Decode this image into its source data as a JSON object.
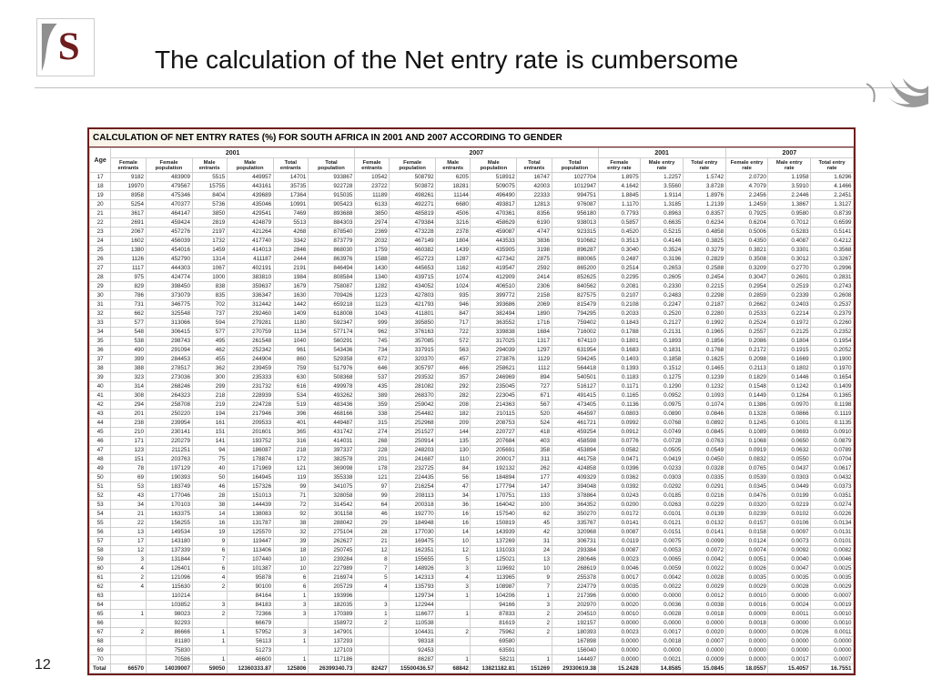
{
  "title": "The calculation of the Net entry rate is cumbersome",
  "page": "12",
  "table": {
    "caption": "CALCULATION OF NET ENTRY RATES (%) FOR SOUTH AFRICA IN 2001 AND 2007 ACCORDING TO GENDER",
    "head": {
      "age": "Age",
      "g1": "2001",
      "g2": "2007",
      "sub": [
        "Female<br>entrants",
        "Female<br>population",
        "Male<br>entrants",
        "Male<br>population",
        "Total<br>entrants",
        "Total<br>population",
        "Female<br>entrants",
        "Female<br>population",
        "Male<br>entrants",
        "Male<br>population",
        "Total<br>entrants",
        "Total<br>population",
        "Female<br>entry rate",
        "Male entry<br>rate",
        "Total entry<br>rate",
        "Female entry<br>rate",
        "Male entry<br>rate",
        "Total entry<br>rate"
      ]
    },
    "colors": {
      "frame_border": "#6e1e1e",
      "grid": "#cfcfcf",
      "header_rule": "#bfbfbf",
      "title_band": "#f7f3e8"
    },
    "font": {
      "family": "Arial",
      "body_pt": 6,
      "head_pt": 6,
      "caption_pt": 10
    },
    "rows": [
      [
        "17",
        9182,
        483909,
        5515,
        449957,
        14701,
        933867,
        10542,
        508792,
        6205,
        518912,
        16747,
        1027704,
        "1.8975",
        "1.2257",
        "1.5742",
        "2.0720",
        "1.1958",
        "1.6296"
      ],
      [
        "18",
        19970,
        479567,
        15755,
        443161,
        35735,
        922728,
        23722,
        503872,
        18281,
        509075,
        42003,
        1012947,
        "4.1642",
        "3.5560",
        "3.8728",
        "4.7079",
        "3.5910",
        "4.1466"
      ],
      [
        "19",
        8958,
        475346,
        8404,
        439689,
        17364,
        915035,
        11189,
        498261,
        11144,
        496490,
        22333,
        994751,
        "1.8845",
        "1.9114",
        "1.8976",
        "2.2456",
        "2.2446",
        "2.2451"
      ],
      [
        "20",
        5254,
        470377,
        5736,
        435046,
        10991,
        905423,
        6133,
        492271,
        6680,
        493817,
        12813,
        976087,
        "1.1170",
        "1.3185",
        "1.2139",
        "1.2459",
        "1.3867",
        "1.3127"
      ],
      [
        "21",
        3617,
        464147,
        3850,
        429541,
        7469,
        893688,
        3850,
        485819,
        4506,
        470361,
        8356,
        956180,
        "0.7793",
        "0.8963",
        "0.8357",
        "0.7925",
        "0.9580",
        "0.8739"
      ],
      [
        "22",
        2691,
        459424,
        2819,
        424879,
        5513,
        884303,
        2974,
        479384,
        3216,
        458629,
        6190,
        938013,
        "0.5857",
        "0.6635",
        "0.6234",
        "0.6204",
        "0.7012",
        "0.6599"
      ],
      [
        "23",
        2067,
        457276,
        2197,
        421264,
        4268,
        878540,
        2369,
        473228,
        2378,
        459087,
        4747,
        923315,
        "0.4520",
        "0.5215",
        "0.4858",
        "0.5006",
        "0.5283",
        "0.5141"
      ],
      [
        "24",
        1602,
        456039,
        1732,
        417740,
        3342,
        873779,
        2032,
        467149,
        1804,
        443533,
        3836,
        910682,
        "0.3513",
        "0.4146",
        "0.3825",
        "0.4350",
        "0.4087",
        "0.4212"
      ],
      [
        "25",
        1380,
        454016,
        1459,
        414013,
        2846,
        868030,
        1759,
        460382,
        1439,
        435905,
        3198,
        896287,
        "0.3040",
        "0.3524",
        "0.3279",
        "0.3821",
        "0.3301",
        "0.3568"
      ],
      [
        "26",
        1126,
        452790,
        1314,
        411187,
        2444,
        863976,
        1588,
        452723,
        1287,
        427342,
        2875,
        880065,
        "0.2487",
        "0.3196",
        "0.2829",
        "0.3508",
        "0.3012",
        "0.3267"
      ],
      [
        "27",
        1117,
        444303,
        1067,
        402191,
        2191,
        846494,
        1430,
        445653,
        1162,
        419547,
        2592,
        865200,
        "0.2514",
        "0.2653",
        "0.2588",
        "0.3209",
        "0.2770",
        "0.2996"
      ],
      [
        "28",
        975,
        424774,
        1000,
        383810,
        1984,
        808584,
        1340,
        439715,
        1074,
        412909,
        2414,
        852625,
        "0.2295",
        "0.2605",
        "0.2454",
        "0.3047",
        "0.2601",
        "0.2831"
      ],
      [
        "29",
        829,
        398450,
        838,
        359637,
        1679,
        758087,
        1282,
        434052,
        1024,
        406510,
        2306,
        840562,
        "0.2081",
        "0.2330",
        "0.2215",
        "0.2954",
        "0.2519",
        "0.2743"
      ],
      [
        "30",
        786,
        373079,
        835,
        336347,
        1630,
        709426,
        1223,
        427803,
        935,
        399772,
        2158,
        827575,
        "0.2107",
        "0.2483",
        "0.2298",
        "0.2859",
        "0.2339",
        "0.2608"
      ],
      [
        "31",
        731,
        346775,
        702,
        312442,
        1442,
        659218,
        1123,
        421793,
        946,
        393686,
        2069,
        815479,
        "0.2108",
        "0.2247",
        "0.2187",
        "0.2662",
        "0.2403",
        "0.2537"
      ],
      [
        "32",
        662,
        325548,
        737,
        292460,
        1409,
        618008,
        1043,
        411801,
        847,
        382494,
        1890,
        794295,
        "0.2033",
        "0.2520",
        "0.2280",
        "0.2533",
        "0.2214",
        "0.2379"
      ],
      [
        "33",
        577,
        313066,
        594,
        279281,
        1180,
        592347,
        999,
        395850,
        717,
        363552,
        1716,
        759402,
        "0.1843",
        "0.2127",
        "0.1992",
        "0.2524",
        "0.1972",
        "0.2260"
      ],
      [
        "34",
        548,
        306415,
        577,
        270759,
        1134,
        577174,
        962,
        376163,
        722,
        339838,
        1684,
        716002,
        "0.1788",
        "0.2131",
        "0.1965",
        "0.2557",
        "0.2125",
        "0.2352"
      ],
      [
        "35",
        538,
        298743,
        495,
        261548,
        1040,
        560291,
        745,
        357085,
        572,
        317025,
        1317,
        674110,
        "0.1801",
        "0.1893",
        "0.1856",
        "0.2086",
        "0.1804",
        "0.1954"
      ],
      [
        "36",
        490,
        291094,
        462,
        252342,
        961,
        543436,
        734,
        337915,
        563,
        294039,
        1297,
        631954,
        "0.1683",
        "0.1831",
        "0.1768",
        "0.2172",
        "0.1915",
        "0.2052"
      ],
      [
        "37",
        399,
        284453,
        455,
        244904,
        860,
        529358,
        672,
        320370,
        457,
        273876,
        1129,
        594245,
        "0.1403",
        "0.1858",
        "0.1625",
        "0.2098",
        "0.1669",
        "0.1900"
      ],
      [
        "38",
        388,
        278517,
        362,
        239459,
        759,
        517976,
        646,
        305797,
        466,
        258621,
        1112,
        564418,
        "0.1393",
        "0.1512",
        "0.1465",
        "0.2113",
        "0.1802",
        "0.1970"
      ],
      [
        "39",
        323,
        273036,
        300,
        235333,
        630,
        508368,
        537,
        293532,
        357,
        246969,
        894,
        540501,
        "0.1183",
        "0.1275",
        "0.1239",
        "0.1829",
        "0.1446",
        "0.1654"
      ],
      [
        "40",
        314,
        268246,
        299,
        231732,
        616,
        499978,
        435,
        281082,
        292,
        235045,
        727,
        516127,
        "0.1171",
        "0.1290",
        "0.1232",
        "0.1548",
        "0.1242",
        "0.1409"
      ],
      [
        "41",
        308,
        264323,
        218,
        228939,
        534,
        493262,
        389,
        268370,
        282,
        223045,
        671,
        491415,
        "0.1165",
        "0.0952",
        "0.1093",
        "0.1449",
        "0.1264",
        "0.1365"
      ],
      [
        "42",
        294,
        258708,
        219,
        224728,
        519,
        483436,
        359,
        259042,
        208,
        214363,
        567,
        473405,
        "0.1136",
        "0.0975",
        "0.1074",
        "0.1386",
        "0.0970",
        "0.1198"
      ],
      [
        "43",
        201,
        250220,
        194,
        217946,
        396,
        468166,
        338,
        254482,
        182,
        210115,
        520,
        464597,
        "0.0803",
        "0.0890",
        "0.0846",
        "0.1328",
        "0.0866",
        "0.1119"
      ],
      [
        "44",
        238,
        239954,
        161,
        209533,
        401,
        449487,
        315,
        252968,
        209,
        208753,
        524,
        461721,
        "0.0992",
        "0.0768",
        "0.0892",
        "0.1245",
        "0.1001",
        "0.1135"
      ],
      [
        "45",
        210,
        230141,
        151,
        201601,
        365,
        431742,
        274,
        251527,
        144,
        220727,
        418,
        459254,
        "0.0912",
        "0.0749",
        "0.0845",
        "0.1089",
        "0.0693",
        "0.0910"
      ],
      [
        "46",
        171,
        220279,
        141,
        193752,
        316,
        414031,
        268,
        250914,
        135,
        207684,
        403,
        458598,
        "0.0776",
        "0.0728",
        "0.0763",
        "0.1068",
        "0.0650",
        "0.0879"
      ],
      [
        "47",
        123,
        211251,
        94,
        186087,
        218,
        397337,
        228,
        248203,
        130,
        205691,
        358,
        453894,
        "0.0582",
        "0.0505",
        "0.0549",
        "0.0919",
        "0.0632",
        "0.0789"
      ],
      [
        "48",
        151,
        203763,
        75,
        178874,
        172,
        382578,
        201,
        241687,
        110,
        200017,
        311,
        441758,
        "0.0471",
        "0.0419",
        "0.0450",
        "0.0832",
        "0.0550",
        "0.0704"
      ],
      [
        "49",
        78,
        197129,
        40,
        171969,
        121,
        369098,
        178,
        232725,
        84,
        192132,
        262,
        424858,
        "0.0396",
        "0.0233",
        "0.0328",
        "0.0765",
        "0.0437",
        "0.0617"
      ],
      [
        "50",
        69,
        190393,
        50,
        164945,
        119,
        355338,
        121,
        224435,
        56,
        184894,
        177,
        409329,
        "0.0362",
        "0.0303",
        "0.0335",
        "0.0539",
        "0.0303",
        "0.0432"
      ],
      [
        "51",
        53,
        183749,
        46,
        157326,
        99,
        341075,
        97,
        216254,
        47,
        177794,
        147,
        394048,
        "0.0392",
        "0.0292",
        "0.0291",
        "0.0345",
        "0.0449",
        "0.0373"
      ],
      [
        "52",
        43,
        177046,
        28,
        151013,
        71,
        328058,
        99,
        208113,
        34,
        170751,
        133,
        378864,
        "0.0243",
        "0.0185",
        "0.0216",
        "0.0476",
        "0.0199",
        "0.0351"
      ],
      [
        "53",
        34,
        170103,
        38,
        144439,
        72,
        314542,
        64,
        200318,
        36,
        164042,
        100,
        364352,
        "0.0200",
        "0.0263",
        "0.0229",
        "0.0320",
        "0.0219",
        "0.0274"
      ],
      [
        "54",
        21,
        163375,
        14,
        138083,
        92,
        301158,
        46,
        192770,
        16,
        157540,
        62,
        350270,
        "0.0172",
        "0.0101",
        "0.0139",
        "0.0239",
        "0.0102",
        "0.0226"
      ],
      [
        "55",
        22,
        156255,
        16,
        131787,
        38,
        288042,
        29,
        184948,
        16,
        150819,
        45,
        335767,
        "0.0141",
        "0.0121",
        "0.0132",
        "0.0157",
        "0.0106",
        "0.0134"
      ],
      [
        "56",
        13,
        149534,
        19,
        125570,
        32,
        275104,
        28,
        177030,
        14,
        143939,
        42,
        320968,
        "0.0087",
        "0.0151",
        "0.0141",
        "0.0158",
        "0.0097",
        "0.0131"
      ],
      [
        "57",
        17,
        143180,
        9,
        119447,
        39,
        262627,
        21,
        169475,
        10,
        137269,
        31,
        306731,
        "0.0119",
        "0.0075",
        "0.0099",
        "0.0124",
        "0.0073",
        "0.0101"
      ],
      [
        "58",
        12,
        137339,
        6,
        113406,
        18,
        250745,
        12,
        162351,
        12,
        131033,
        24,
        293384,
        "0.0087",
        "0.0053",
        "0.0072",
        "0.0074",
        "0.0092",
        "0.0082"
      ],
      [
        "59",
        3,
        131844,
        7,
        107440,
        10,
        239284,
        8,
        155655,
        5,
        125021,
        13,
        280646,
        "0.0023",
        "0.0065",
        "0.0042",
        "0.0051",
        "0.0040",
        "0.0046"
      ],
      [
        "60",
        4,
        126401,
        6,
        101387,
        10,
        227989,
        7,
        148926,
        3,
        119692,
        10,
        268619,
        "0.0046",
        "0.0059",
        "0.0022",
        "0.0026",
        "0.0047",
        "0.0025"
      ],
      [
        "61",
        2,
        121096,
        4,
        95878,
        6,
        216974,
        5,
        142313,
        4,
        113965,
        9,
        255378,
        "0.0017",
        "0.0042",
        "0.0028",
        "0.0035",
        "0.0035",
        "0.0035"
      ],
      [
        "62",
        4,
        115630,
        2,
        90100,
        6,
        205729,
        4,
        135793,
        3,
        108987,
        7,
        224779,
        "0.0035",
        "0.0022",
        "0.0029",
        "0.0029",
        "0.0028",
        "0.0029"
      ],
      [
        "63",
        "",
        110214,
        "",
        84164,
        1,
        193996,
        "",
        129734,
        1,
        104206,
        1,
        217396,
        "0.0000",
        "0.0000",
        "0.0012",
        "0.0010",
        "0.0000",
        "0.0007"
      ],
      [
        "64",
        "",
        103852,
        3,
        84183,
        3,
        182035,
        3,
        122944,
        "",
        94166,
        3,
        202970,
        "0.0020",
        "0.0036",
        "0.0038",
        "0.0016",
        "0.0024",
        "0.0019"
      ],
      [
        "65",
        1,
        98023,
        2,
        72366,
        3,
        170389,
        1,
        116677,
        1,
        87833,
        2,
        204510,
        "0.0010",
        "0.0028",
        "0.0018",
        "0.0009",
        "0.0011",
        "0.0010"
      ],
      [
        "66",
        "",
        92293,
        "",
        66679,
        "",
        158972,
        2,
        110538,
        "",
        81619,
        2,
        192157,
        "0.0000",
        "0.0000",
        "0.0000",
        "0.0018",
        "0.0000",
        "0.0010"
      ],
      [
        "67",
        2,
        86666,
        1,
        57952,
        3,
        147901,
        "",
        104431,
        2,
        75962,
        2,
        180393,
        "0.0023",
        "0.0017",
        "0.0020",
        "0.0000",
        "0.0026",
        "0.0011"
      ],
      [
        "68",
        "",
        81180,
        1,
        56113,
        1,
        137293,
        "",
        98318,
        "",
        69580,
        "",
        167898,
        "0.0000",
        "0.0018",
        "0.0007",
        "0.0000",
        "0.0000",
        "0.0000"
      ],
      [
        "69",
        "",
        75830,
        "",
        51273,
        "",
        127103,
        "",
        92453,
        "",
        63591,
        "",
        156040,
        "0.0000",
        "0.0000",
        "0.0000",
        "0.0000",
        "0.0000",
        "0.0000"
      ],
      [
        "70",
        "",
        70586,
        1,
        46600,
        1,
        117186,
        "",
        86287,
        1,
        58211,
        1,
        144497,
        "0.0000",
        "0.0021",
        "0.0009",
        "0.0000",
        "0.0017",
        "0.0007"
      ]
    ],
    "total": [
      "Total",
      66570,
      14039007,
      59050,
      "12360333.87",
      125806,
      "26399340.73",
      82427,
      "15500436.57",
      68842,
      "13821182.81",
      151269,
      "29330619.38",
      "15.2428",
      "14.8585",
      "15.0845",
      "18.0557",
      "15.4057",
      "16.7551"
    ]
  }
}
